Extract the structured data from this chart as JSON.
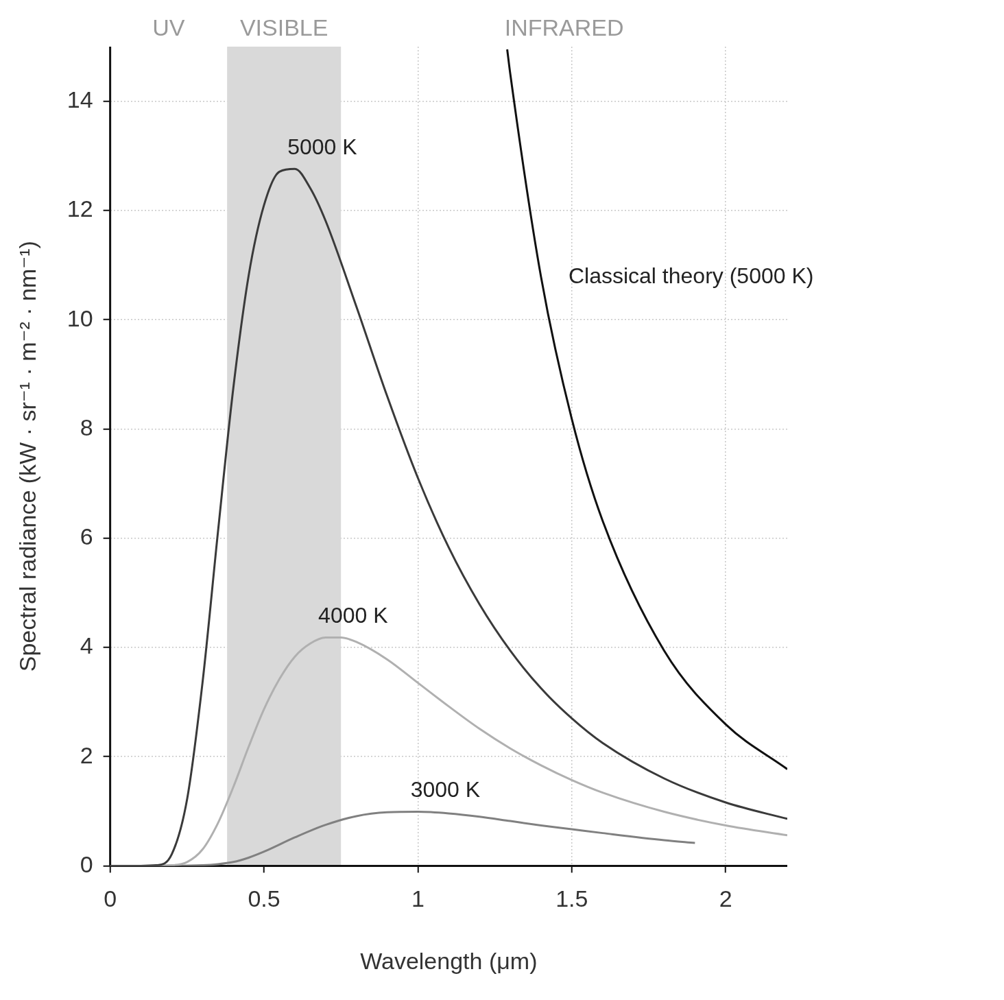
{
  "chart_data": {
    "type": "line",
    "xlabel": "Wavelength (μm)",
    "ylabel": "Spectral radiance (kW · sr⁻¹ · m⁻² · nm⁻¹)",
    "series": [
      {
        "name": "5000 K",
        "color": "#3a3a3a",
        "x": [
          0,
          0.1,
          0.15,
          0.2,
          0.25,
          0.3,
          0.35,
          0.4,
          0.45,
          0.5,
          0.55,
          0.6,
          0.65,
          0.7,
          0.8,
          0.9,
          1.0,
          1.1,
          1.2,
          1.3,
          1.4,
          1.5,
          1.6,
          1.8,
          2.0,
          2.2
        ],
        "values": [
          0,
          0,
          0.01,
          0.21,
          1.22,
          3.35,
          6.1,
          8.74,
          10.81,
          12.1,
          12.71,
          12.76,
          12.41,
          11.81,
          10.24,
          8.6,
          7.1,
          5.83,
          4.79,
          3.94,
          3.25,
          2.7,
          2.25,
          1.6,
          1.16,
          0.86
        ]
      },
      {
        "name": "4000 K",
        "color": "#b0b0b0",
        "x": [
          0,
          0.1,
          0.2,
          0.25,
          0.3,
          0.35,
          0.4,
          0.45,
          0.5,
          0.55,
          0.6,
          0.65,
          0.7,
          0.75,
          0.8,
          0.9,
          1.0,
          1.1,
          1.2,
          1.3,
          1.4,
          1.5,
          1.6,
          1.8,
          2.0,
          2.2
        ],
        "values": [
          0,
          0,
          0.01,
          0.07,
          0.3,
          0.78,
          1.44,
          2.18,
          2.87,
          3.42,
          3.83,
          4.07,
          4.18,
          4.18,
          4.1,
          3.78,
          3.35,
          2.92,
          2.51,
          2.15,
          1.84,
          1.57,
          1.34,
          0.99,
          0.74,
          0.56
        ]
      },
      {
        "name": "3000 K",
        "color": "#808080",
        "x": [
          0,
          0.1,
          0.2,
          0.3,
          0.35,
          0.4,
          0.45,
          0.5,
          0.6,
          0.7,
          0.8,
          0.9,
          1.0,
          1.1,
          1.2,
          1.3,
          1.4,
          1.5,
          1.6,
          1.8,
          1.9
        ],
        "values": [
          0,
          0,
          0,
          0.01,
          0.03,
          0.07,
          0.15,
          0.26,
          0.52,
          0.75,
          0.91,
          0.98,
          0.99,
          0.96,
          0.9,
          0.82,
          0.74,
          0.67,
          0.6,
          0.47,
          0.42
        ]
      },
      {
        "name": "Classical theory (5000 K)",
        "color": "#111111",
        "x": [
          1.29,
          1.3,
          1.4,
          1.5,
          1.6,
          1.8,
          2.0,
          2.2
        ],
        "values": [
          14.95,
          14.5,
          10.78,
          8.18,
          6.32,
          3.94,
          2.59,
          1.77
        ]
      }
    ],
    "bands": [
      {
        "axis": "x",
        "from": 0.38,
        "to": 0.75,
        "label": "VISIBLE",
        "color": "#d9d9d9"
      }
    ],
    "annotations": [
      "UV",
      "INFRARED"
    ],
    "xlim": [
      0,
      2.2
    ],
    "xticks": [
      0,
      0.5,
      1,
      1.5,
      2
    ],
    "ylim": [
      0,
      15
    ],
    "yticks": [
      0,
      2,
      4,
      6,
      8,
      10,
      12,
      14
    ],
    "grid": true,
    "legend": false,
    "marker": "none",
    "line_style": "solid"
  }
}
